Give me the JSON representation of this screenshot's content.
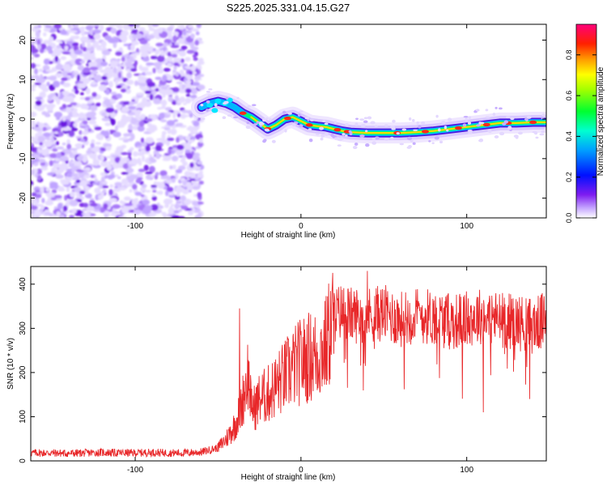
{
  "figure": {
    "title": "S225.2025.331.04.15.G27"
  },
  "colors": {
    "line": "#e8282a",
    "axis": "#000000",
    "background": "#ffffff"
  },
  "chart_data": [
    {
      "type": "heatmap",
      "title": "S225.2025.331.04.15.G27",
      "xlabel": "Height of straight line (km)",
      "ylabel": "Frequency (Hz)",
      "xlim": [
        -163,
        148
      ],
      "ylim": [
        -25,
        24
      ],
      "xticks": [
        -100,
        0,
        100
      ],
      "xtick_labels": [
        "-100",
        "0",
        "100"
      ],
      "yticks": [
        -20,
        -10,
        0,
        10,
        20
      ],
      "ytick_labels": [
        "-20",
        "-10",
        "0",
        "10",
        "20"
      ],
      "noise_region_x": [
        -163,
        -60
      ],
      "signal_ridge": {
        "x": [
          -60,
          -55,
          -50,
          -45,
          -40,
          -35,
          -30,
          -25,
          -20,
          -15,
          -10,
          -5,
          0,
          5,
          10,
          15,
          20,
          25,
          30,
          40,
          50,
          60,
          70,
          80,
          90,
          100,
          110,
          120,
          130,
          140,
          148
        ],
        "freq": [
          3,
          4,
          4.5,
          4,
          3,
          1.5,
          0.5,
          -1,
          -2.5,
          -1.5,
          0,
          0.5,
          -0.5,
          -1.5,
          -1.8,
          -2,
          -2.5,
          -3,
          -3.3,
          -3.5,
          -3.5,
          -3.5,
          -3.3,
          -3,
          -2.5,
          -2,
          -1.5,
          -1,
          -1,
          -0.8,
          -0.8
        ]
      },
      "colorbar": {
        "label": "Normalized spectral amplitude",
        "range": [
          0,
          0.95
        ],
        "ticks": [
          0.0,
          0.2,
          0.4,
          0.6,
          0.8
        ],
        "tick_labels": [
          "0.0",
          "0.2",
          "0.4",
          "0.6",
          "0.8"
        ]
      }
    },
    {
      "type": "line",
      "xlabel": "Height of straight line (km)",
      "ylabel": "SNR (10 * v/v)",
      "xlim": [
        -163,
        148
      ],
      "ylim": [
        0,
        440
      ],
      "xticks": [
        -100,
        0,
        100
      ],
      "xtick_labels": [
        "-100",
        "0",
        "100"
      ],
      "yticks": [
        0,
        100,
        200,
        300,
        400
      ],
      "ytick_labels": [
        "0",
        "100",
        "200",
        "300",
        "400"
      ],
      "series": [
        {
          "name": "SNR",
          "x": [
            -163,
            -150,
            -140,
            -130,
            -120,
            -110,
            -100,
            -90,
            -80,
            -70,
            -60,
            -55,
            -50,
            -45,
            -40,
            -37,
            -35,
            -32,
            -30,
            -28,
            -25,
            -20,
            -15,
            -10,
            -5,
            0,
            5,
            10,
            15,
            20,
            25,
            30,
            40,
            50,
            60,
            70,
            80,
            90,
            100,
            110,
            120,
            130,
            140,
            148
          ],
          "values": [
            18,
            18,
            17,
            18,
            19,
            18,
            18,
            19,
            18,
            18,
            20,
            25,
            30,
            50,
            80,
            110,
            140,
            200,
            130,
            120,
            140,
            150,
            170,
            190,
            210,
            225,
            235,
            240,
            260,
            330,
            340,
            330,
            330,
            335,
            320,
            330,
            325,
            315,
            320,
            330,
            320,
            315,
            305,
            320
          ],
          "spikes": {
            "x": [
              -37,
              -30,
              20,
              40,
              110,
              138
            ],
            "values": [
              345,
              110,
              380,
              430,
              110,
              140
            ]
          }
        }
      ]
    }
  ]
}
